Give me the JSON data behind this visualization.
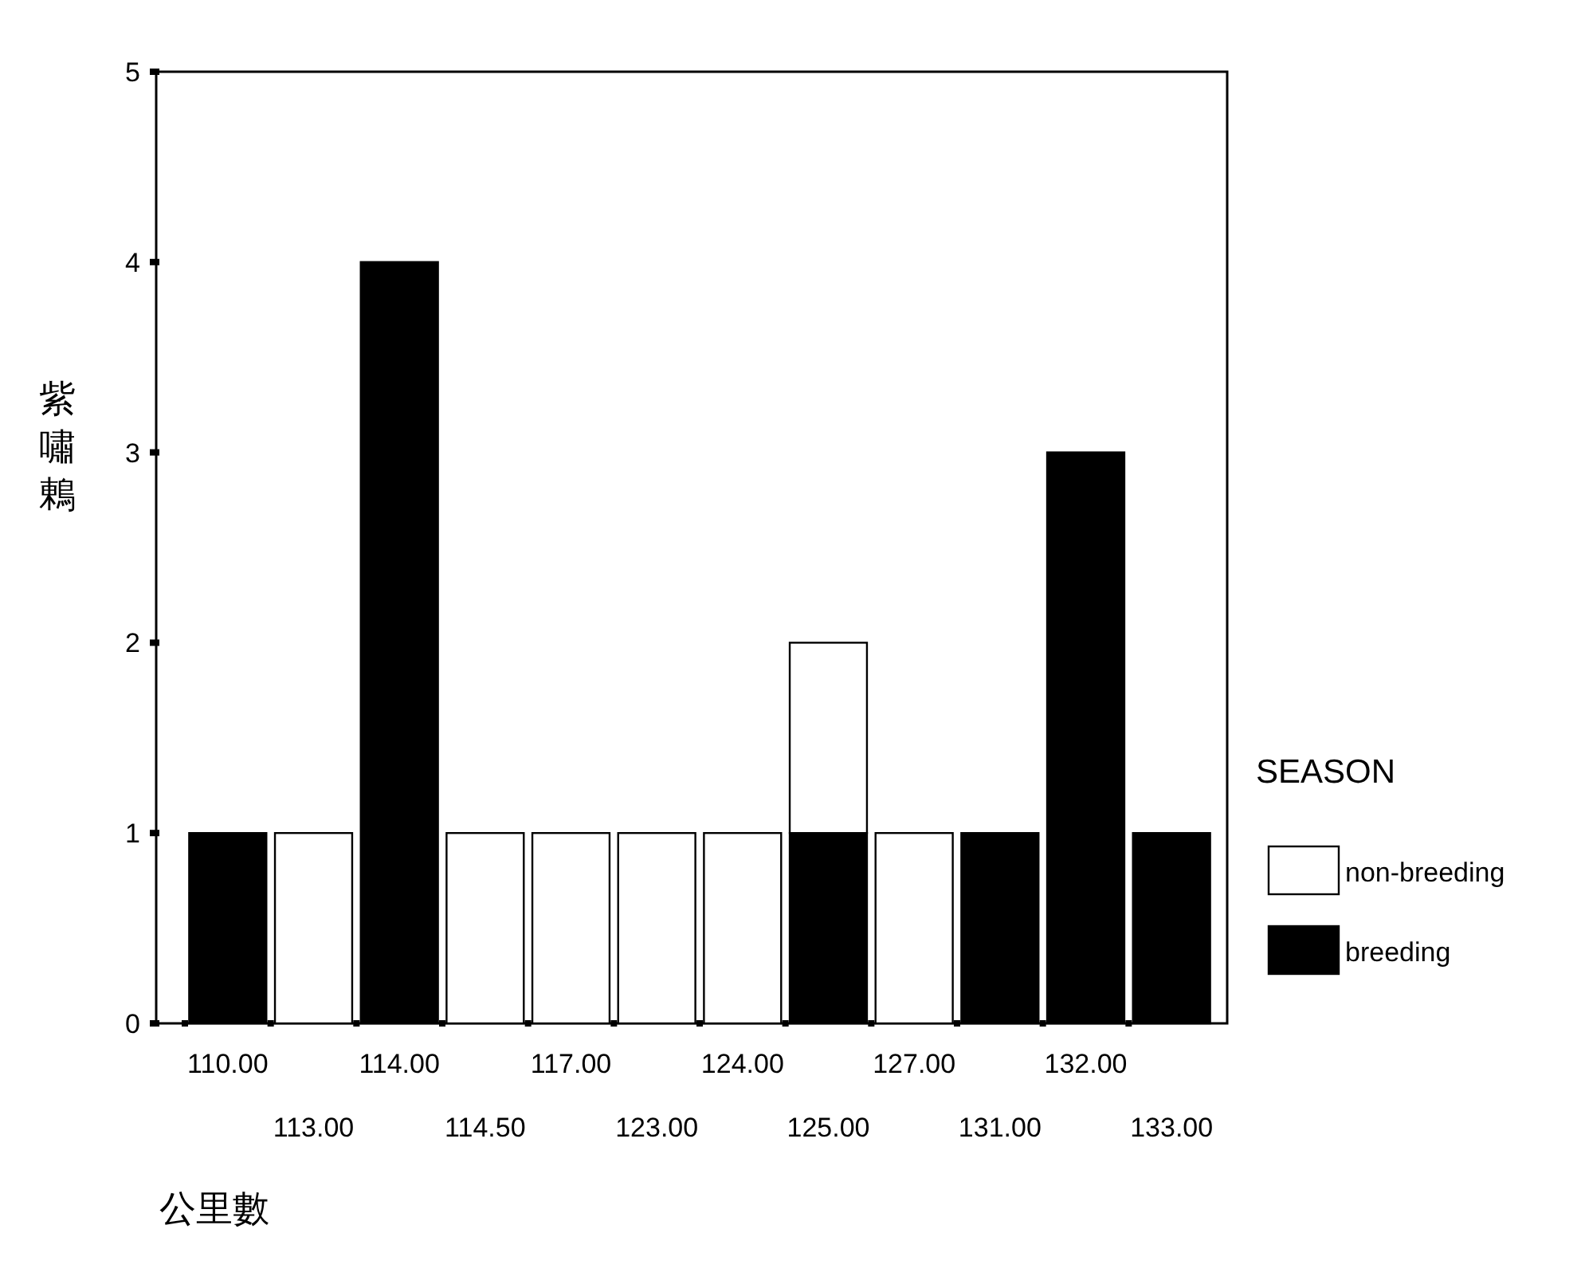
{
  "chart_data": {
    "type": "bar",
    "stacked": true,
    "xlabel": "公里數",
    "ylabel": "紫嘯鶇",
    "legend_title": "SEASON",
    "legend": "right",
    "categories": [
      "110.00",
      "113.00",
      "114.00",
      "114.50",
      "117.00",
      "123.00",
      "124.00",
      "125.00",
      "127.00",
      "131.00",
      "132.00",
      "133.00"
    ],
    "ylim": [
      0,
      5
    ],
    "yticks": [
      0,
      1,
      2,
      3,
      4,
      5
    ],
    "grid": false,
    "series": [
      {
        "name": "breeding",
        "color": "#000000",
        "values": [
          1,
          null,
          4,
          null,
          null,
          null,
          null,
          1,
          null,
          1,
          3,
          1
        ]
      },
      {
        "name": "non-breeding",
        "color": "#ffffff",
        "values": [
          null,
          1,
          null,
          1,
          1,
          1,
          1,
          1,
          1,
          null,
          null,
          null
        ]
      }
    ]
  }
}
